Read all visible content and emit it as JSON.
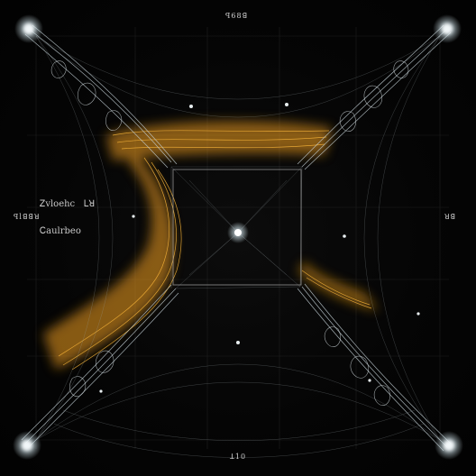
{
  "labels": {
    "top": "ꟼ68ꓭ",
    "bottom": "ꓕ10",
    "left": "ꟼlꓭꓭꓤ",
    "right": "ꓤꓭ",
    "scribble_line1": "Ꮓvloehc   ꓡꓤ",
    "scribble_line2": "Ꮯaulrbeo"
  },
  "colors": {
    "background": "#050505",
    "filament": "#c9d6dc",
    "glow": "#f2a51f",
    "grid": "#2a2a2a"
  }
}
